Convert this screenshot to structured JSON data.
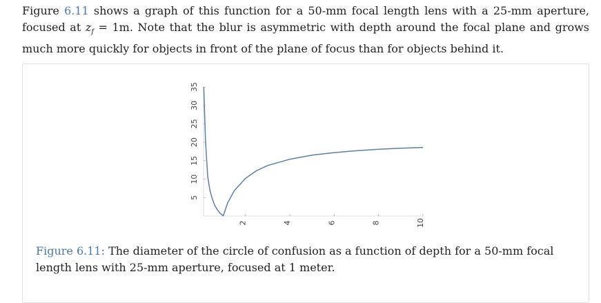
{
  "paragraph": {
    "part1": "Figure ",
    "figref": "6.11",
    "part2": " shows a graph of this function for a 50-mm focal length lens with a 25-mm aperture, focused at ",
    "math_var": "z",
    "math_sub": "f",
    "math_rest": " = 1m",
    "part3": ". Note that the blur is asymmetric with depth around the focal plane and grows much more quickly for objects in front of the plane of focus than for objects behind it."
  },
  "caption": {
    "label": "Figure 6.11:",
    "text": " The diameter of the circle of confusion as a function of depth for a 50-mm focal length lens with 25-mm aperture, focused at 1 meter."
  },
  "chart_data": {
    "type": "line",
    "title": "",
    "xlabel": "",
    "ylabel": "",
    "xlim": [
      0.05,
      10
    ],
    "ylim": [
      0,
      35
    ],
    "xticks": [
      2,
      4,
      6,
      8,
      10
    ],
    "yticks": [
      5,
      10,
      15,
      20,
      25,
      30,
      35
    ],
    "series": [
      {
        "color": "#5a7fa8",
        "x": [
          0.12,
          0.2,
          0.3,
          0.4,
          0.5,
          0.6,
          0.7,
          0.8,
          0.9,
          1.0,
          1.2,
          1.5,
          2,
          2.5,
          3,
          4,
          5,
          6,
          7,
          8,
          9,
          10
        ],
        "y": [
          35,
          20.5,
          10.7,
          6.9,
          4.8,
          3.1,
          2.0,
          1.2,
          0.55,
          0.1,
          3.6,
          6.9,
          10.2,
          12.3,
          13.7,
          15.4,
          16.5,
          17.2,
          17.7,
          18.1,
          18.4,
          18.6
        ]
      }
    ]
  }
}
